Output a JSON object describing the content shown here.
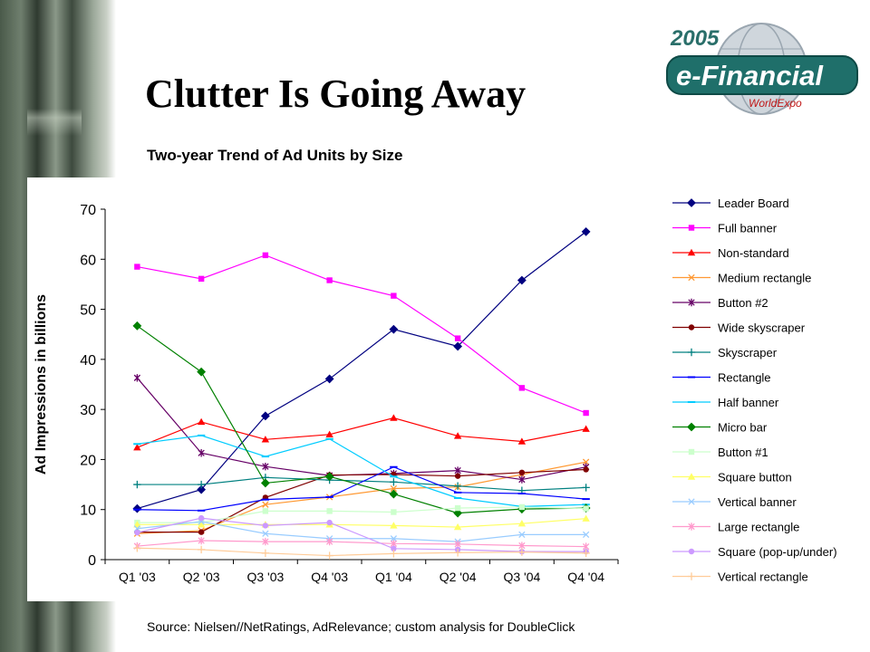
{
  "slide": {
    "title": "Clutter Is Going Away",
    "subtitle": "Two-year Trend of Ad Units by Size",
    "source": "Source: Nielsen//NetRatings, AdRelevance; custom analysis for DoubleClick"
  },
  "logo": {
    "year": "2005",
    "name": "e-Financial",
    "tagline": "WorldExpo"
  },
  "chart_data": {
    "type": "line",
    "title": "",
    "xlabel": "",
    "ylabel": "Ad Impressions in billions",
    "ylim": [
      0,
      70
    ],
    "yticks": [
      0,
      10,
      20,
      30,
      40,
      50,
      60,
      70
    ],
    "grid": false,
    "legend": "right",
    "categories": [
      "Q1 '03",
      "Q2 '03",
      "Q3 '03",
      "Q4 '03",
      "Q1 '04",
      "Q2 '04",
      "Q3 '04",
      "Q4 '04"
    ],
    "series": [
      {
        "name": "Leader Board",
        "color": "#000080",
        "marker": "diamond",
        "values": [
          10.2,
          14.0,
          28.7,
          36.1,
          46.0,
          42.6,
          55.8,
          65.5
        ]
      },
      {
        "name": "Full banner",
        "color": "#ff00ff",
        "marker": "square",
        "values": [
          58.5,
          56.1,
          60.8,
          55.8,
          52.7,
          44.2,
          34.3,
          29.3
        ]
      },
      {
        "name": "Non-standard",
        "color": "#ff0000",
        "marker": "triangle",
        "values": [
          22.4,
          27.5,
          24.0,
          25.0,
          28.3,
          24.7,
          23.6,
          26.1
        ]
      },
      {
        "name": "Medium rectangle",
        "color": "#ff9933",
        "marker": "x",
        "values": [
          5.2,
          5.8,
          11.0,
          12.5,
          14.2,
          14.5,
          17.0,
          19.5
        ]
      },
      {
        "name": "Button #2",
        "color": "#660066",
        "marker": "star",
        "values": [
          36.3,
          21.3,
          18.6,
          16.8,
          17.2,
          17.8,
          16.0,
          18.5
        ]
      },
      {
        "name": "Wide skyscraper",
        "color": "#800000",
        "marker": "circle",
        "values": [
          5.5,
          5.5,
          12.4,
          16.9,
          17.0,
          16.7,
          17.4,
          18.0
        ]
      },
      {
        "name": "Skyscraper",
        "color": "#008080",
        "marker": "plus",
        "values": [
          15.0,
          15.0,
          16.4,
          15.9,
          15.5,
          14.7,
          13.8,
          14.4
        ]
      },
      {
        "name": "Rectangle",
        "color": "#0000ff",
        "marker": "dash",
        "values": [
          10.0,
          9.8,
          12.0,
          12.5,
          18.5,
          13.4,
          13.2,
          12.1
        ]
      },
      {
        "name": "Half banner",
        "color": "#00ccff",
        "marker": "dash",
        "values": [
          23.1,
          24.8,
          20.6,
          24.1,
          16.6,
          12.3,
          10.6,
          11.0
        ]
      },
      {
        "name": "Micro bar",
        "color": "#008000",
        "marker": "diamond",
        "values": [
          46.7,
          37.5,
          15.3,
          16.6,
          13.1,
          9.3,
          10.1,
          10.3
        ]
      },
      {
        "name": "Button #1",
        "color": "#ccffcc",
        "marker": "square",
        "values": [
          7.4,
          7.4,
          9.7,
          9.7,
          9.5,
          10.3,
          10.5,
          10.2
        ]
      },
      {
        "name": "Square button",
        "color": "#ffff66",
        "marker": "triangle",
        "values": [
          7.0,
          7.0,
          7.0,
          7.0,
          6.8,
          6.5,
          7.2,
          8.2
        ]
      },
      {
        "name": "Vertical banner",
        "color": "#99ccff",
        "marker": "x",
        "values": [
          6.2,
          7.6,
          5.2,
          4.2,
          4.2,
          3.6,
          5.0,
          5.0
        ]
      },
      {
        "name": "Large rectangle",
        "color": "#ff99cc",
        "marker": "star",
        "values": [
          2.7,
          3.8,
          3.6,
          3.6,
          3.2,
          3.1,
          2.8,
          2.6
        ]
      },
      {
        "name": "Square (pop-up/under)",
        "color": "#cc99ff",
        "marker": "circle",
        "values": [
          5.4,
          8.3,
          6.8,
          7.4,
          2.2,
          2.0,
          1.6,
          1.6
        ]
      },
      {
        "name": "Vertical rectangle",
        "color": "#ffcc99",
        "marker": "plus",
        "values": [
          2.3,
          2.0,
          1.3,
          0.8,
          1.2,
          1.4,
          1.5,
          1.3
        ]
      }
    ]
  }
}
